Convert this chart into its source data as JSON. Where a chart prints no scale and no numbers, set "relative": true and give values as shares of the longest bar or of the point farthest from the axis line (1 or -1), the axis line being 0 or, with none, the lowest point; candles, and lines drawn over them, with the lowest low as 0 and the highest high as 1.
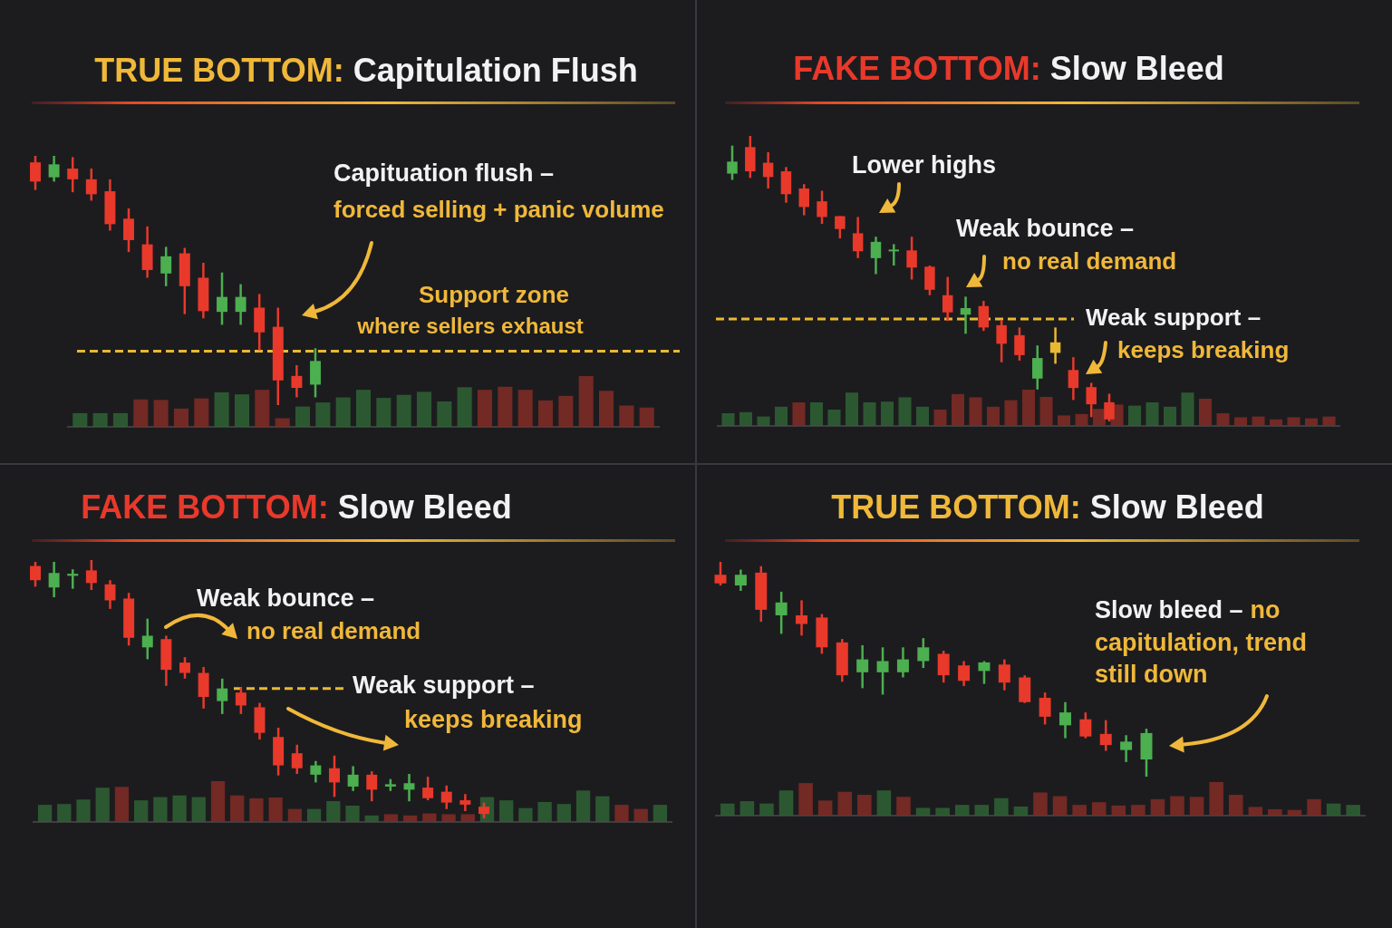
{
  "chart_data": [
    {
      "type": "candlestick",
      "title": "TRUE BOTTOM: Capitulation Flush",
      "relative": true,
      "categories": [
        null,
        null,
        null,
        null,
        null,
        null,
        null,
        null,
        null,
        null,
        null,
        null,
        null,
        null,
        null,
        null
      ],
      "ohlc": [
        [
          0.974,
          1.0,
          0.863,
          0.897
        ],
        [
          0.914,
          1.0,
          0.897,
          0.966
        ],
        [
          0.949,
          0.995,
          0.854,
          0.906
        ],
        [
          0.906,
          0.949,
          0.82,
          0.846
        ],
        [
          0.858,
          0.906,
          0.7,
          0.726
        ],
        [
          0.748,
          0.789,
          0.614,
          0.662
        ],
        [
          0.645,
          0.717,
          0.511,
          0.542
        ],
        [
          0.528,
          0.635,
          0.477,
          0.597
        ],
        [
          0.609,
          0.631,
          0.365,
          0.477
        ],
        [
          0.511,
          0.571,
          0.348,
          0.377
        ],
        [
          0.374,
          0.532,
          0.322,
          0.434
        ],
        [
          0.374,
          0.485,
          0.322,
          0.434
        ],
        [
          0.391,
          0.446,
          0.22,
          0.292
        ],
        [
          0.314,
          0.391,
          0.0,
          0.099
        ],
        [
          0.117,
          0.16,
          0.031,
          0.069
        ],
        [
          0.082,
          0.228,
          0.031,
          0.177
        ]
      ],
      "colors": [
        "#e8392b",
        "#4caf50",
        "#e8392b",
        "#e8392b",
        "#e8392b",
        "#e8392b",
        "#e8392b",
        "#4caf50",
        "#e8392b",
        "#e8392b",
        "#4caf50",
        "#4caf50",
        "#e8392b",
        "#e8392b",
        "#e8392b",
        "#4caf50"
      ],
      "ref_lines": [
        {
          "axis": "y",
          "value": 0.216,
          "color": "#e8b931",
          "line_style": "dashed"
        }
      ],
      "annotations": [
        "Capituation flush –",
        "forced selling + panic volume",
        "Support zone",
        "where sellers exhaust"
      ]
    },
    {
      "type": "bar",
      "relative": true,
      "categories": [
        null,
        null,
        null,
        null,
        null,
        null,
        null,
        null,
        null,
        null,
        null,
        null,
        null,
        null,
        null,
        null,
        null,
        null,
        null,
        null,
        null,
        null,
        null,
        null,
        null,
        null,
        null,
        null,
        null
      ],
      "values": [
        0.27,
        0.27,
        0.27,
        0.54,
        0.53,
        0.36,
        0.56,
        0.68,
        0.64,
        0.73,
        0.17,
        0.4,
        0.48,
        0.58,
        0.73,
        0.57,
        0.63,
        0.69,
        0.5,
        0.78,
        0.73,
        0.79,
        0.73,
        0.52,
        0.61,
        1,
        0.71,
        0.42,
        0.38
      ],
      "colors": [
        "#2f5f33",
        "#2f5f33",
        "#2f5f33",
        "#7d2b25",
        "#7d2b25",
        "#7d2b25",
        "#7d2b25",
        "#2f5f33",
        "#2f5f33",
        "#7d2b25",
        "#7d2b25",
        "#2f5f33",
        "#2f5f33",
        "#2f5f33",
        "#2f5f33",
        "#2f5f33",
        "#2f5f33",
        "#2f5f33",
        "#2f5f33",
        "#2f5f33",
        "#7d2b25",
        "#7d2b25",
        "#7d2b25",
        "#7d2b25",
        "#7d2b25",
        "#7d2b25",
        "#7d2b25",
        "#7d2b25",
        "#7d2b25"
      ]
    },
    {
      "type": "candlestick",
      "title": "FAKE BOTTOM: Slow Bleed",
      "relative": true,
      "categories": [
        null,
        null,
        null,
        null,
        null,
        null,
        null,
        null,
        null,
        null,
        null,
        null,
        null,
        null,
        null,
        null,
        null,
        null,
        null,
        null,
        null,
        null
      ],
      "ohlc": [
        [
          0.868,
          0.966,
          0.846,
          0.91
        ],
        [
          0.961,
          1.0,
          0.853,
          0.876
        ],
        [
          0.906,
          0.943,
          0.816,
          0.856
        ],
        [
          0.876,
          0.891,
          0.766,
          0.796
        ],
        [
          0.816,
          0.831,
          0.722,
          0.751
        ],
        [
          0.771,
          0.808,
          0.692,
          0.716
        ],
        [
          0.719,
          0.719,
          0.641,
          0.674
        ],
        [
          0.659,
          0.716,
          0.572,
          0.596
        ],
        [
          0.572,
          0.647,
          0.516,
          0.629
        ],
        [
          0.596,
          0.621,
          0.546,
          0.602
        ],
        [
          0.599,
          0.647,
          0.497,
          0.539
        ],
        [
          0.542,
          0.546,
          0.442,
          0.461
        ],
        [
          0.442,
          0.506,
          0.352,
          0.382
        ],
        [
          0.374,
          0.437,
          0.307,
          0.397
        ],
        [
          0.404,
          0.422,
          0.317,
          0.329
        ],
        [
          0.337,
          0.356,
          0.207,
          0.272
        ],
        [
          0.302,
          0.329,
          0.213,
          0.232
        ],
        [
          0.15,
          0.266,
          0.112,
          0.222
        ],
        [
          0.24,
          0.329,
          0.202,
          0.277
        ],
        [
          0.18,
          0.225,
          0.075,
          0.117
        ],
        [
          0.12,
          0.135,
          0.015,
          0.06
        ],
        [
          0.067,
          0.097,
          0.0,
          0.007
        ]
      ],
      "colors": [
        "#4caf50",
        "#e8392b",
        "#e8392b",
        "#e8392b",
        "#e8392b",
        "#e8392b",
        "#e8392b",
        "#e8392b",
        "#4caf50",
        "#4caf50",
        "#e8392b",
        "#e8392b",
        "#e8392b",
        "#4caf50",
        "#e8392b",
        "#e8392b",
        "#e8392b",
        "#4caf50",
        "#e8b931",
        "#e8392b",
        "#e8392b",
        "#e8392b"
      ],
      "ref_lines": [
        {
          "axis": "y",
          "value": 0.359,
          "color": "#e8b931",
          "line_style": "dashed"
        }
      ],
      "annotations": [
        "Lower highs",
        "Weak bounce –",
        "no real demand",
        "Weak support –",
        "keeps breaking"
      ]
    },
    {
      "type": "bar",
      "relative": true,
      "categories": [
        null,
        null,
        null,
        null,
        null,
        null,
        null,
        null,
        null,
        null,
        null,
        null,
        null,
        null,
        null,
        null,
        null,
        null,
        null,
        null,
        null,
        null,
        null,
        null,
        null,
        null,
        null,
        null,
        null,
        null,
        null,
        null,
        null,
        null,
        null
      ],
      "values": [
        0.35,
        0.38,
        0.26,
        0.53,
        0.65,
        0.65,
        0.45,
        0.92,
        0.65,
        0.67,
        0.79,
        0.53,
        0.45,
        0.88,
        0.79,
        0.53,
        0.71,
        1,
        0.8,
        0.29,
        0.33,
        0.47,
        0.59,
        0.56,
        0.65,
        0.53,
        0.92,
        0.75,
        0.35,
        0.24,
        0.26,
        0.18,
        0.24,
        0.21,
        0.26
      ],
      "colors": [
        "#2f5f33",
        "#2f5f33",
        "#2f5f33",
        "#2f5f33",
        "#7d2b25",
        "#2f5f33",
        "#2f5f33",
        "#2f5f33",
        "#2f5f33",
        "#2f5f33",
        "#2f5f33",
        "#2f5f33",
        "#7d2b25",
        "#7d2b25",
        "#7d2b25",
        "#7d2b25",
        "#7d2b25",
        "#7d2b25",
        "#7d2b25",
        "#7d2b25",
        "#7d2b25",
        "#7d2b25",
        "#7d2b25",
        "#2f5f33",
        "#2f5f33",
        "#2f5f33",
        "#2f5f33",
        "#7d2b25",
        "#7d2b25",
        "#7d2b25",
        "#7d2b25",
        "#7d2b25",
        "#7d2b25",
        "#7d2b25",
        "#7d2b25"
      ]
    },
    {
      "type": "candlestick",
      "title": "FAKE BOTTOM: Slow Bleed",
      "relative": true,
      "categories": [
        null,
        null,
        null,
        null,
        null,
        null,
        null,
        null,
        null,
        null,
        null,
        null,
        null,
        null,
        null,
        null,
        null,
        null,
        null,
        null,
        null,
        null,
        null,
        null,
        null
      ],
      "ohlc": [
        [
          0.977,
          0.993,
          0.897,
          0.922
        ],
        [
          0.894,
          0.993,
          0.856,
          0.95
        ],
        [
          0.939,
          0.964,
          0.889,
          0.947
        ],
        [
          0.96,
          1.0,
          0.884,
          0.911
        ],
        [
          0.906,
          0.922,
          0.811,
          0.844
        ],
        [
          0.851,
          0.873,
          0.669,
          0.699
        ],
        [
          0.662,
          0.773,
          0.616,
          0.707
        ],
        [
          0.694,
          0.707,
          0.513,
          0.575
        ],
        [
          0.603,
          0.624,
          0.541,
          0.563
        ],
        [
          0.563,
          0.586,
          0.425,
          0.47
        ],
        [
          0.454,
          0.541,
          0.404,
          0.503
        ],
        [
          0.487,
          0.508,
          0.404,
          0.437
        ],
        [
          0.43,
          0.447,
          0.305,
          0.331
        ],
        [
          0.315,
          0.351,
          0.166,
          0.205
        ],
        [
          0.252,
          0.285,
          0.172,
          0.194
        ],
        [
          0.169,
          0.222,
          0.139,
          0.205
        ],
        [
          0.194,
          0.243,
          0.083,
          0.139
        ],
        [
          0.123,
          0.202,
          0.106,
          0.169
        ],
        [
          0.169,
          0.182,
          0.066,
          0.111
        ],
        [
          0.123,
          0.152,
          0.106,
          0.132
        ],
        [
          0.111,
          0.172,
          0.066,
          0.136
        ],
        [
          0.119,
          0.161,
          0.07,
          0.078
        ],
        [
          0.103,
          0.127,
          0.036,
          0.061
        ],
        [
          0.07,
          0.094,
          0.028,
          0.053
        ],
        [
          0.045,
          0.061,
          0.0,
          0.017
        ]
      ],
      "colors": [
        "#e8392b",
        "#4caf50",
        "#4caf50",
        "#e8392b",
        "#e8392b",
        "#e8392b",
        "#4caf50",
        "#e8392b",
        "#e8392b",
        "#e8392b",
        "#4caf50",
        "#e8392b",
        "#e8392b",
        "#e8392b",
        "#e8392b",
        "#4caf50",
        "#e8392b",
        "#4caf50",
        "#e8392b",
        "#4caf50",
        "#4caf50",
        "#e8392b",
        "#e8392b",
        "#e8392b",
        "#e8392b"
      ],
      "ref_lines": [
        {
          "axis": "y",
          "value": 0.503,
          "color": "#e8b931",
          "line_style": "dashed"
        }
      ],
      "annotations": [
        "Weak bounce –",
        "no real demand",
        "Weak support –",
        "keeps breaking"
      ]
    },
    {
      "type": "bar",
      "relative": true,
      "categories": [
        null,
        null,
        null,
        null,
        null,
        null,
        null,
        null,
        null,
        null,
        null,
        null,
        null,
        null,
        null,
        null,
        null,
        null,
        null,
        null,
        null,
        null,
        null,
        null,
        null,
        null,
        null,
        null,
        null,
        null,
        null,
        null,
        null
      ],
      "values": [
        0.42,
        0.44,
        0.55,
        0.84,
        0.86,
        0.53,
        0.61,
        0.65,
        0.61,
        1,
        0.65,
        0.58,
        0.6,
        0.32,
        0.32,
        0.51,
        0.4,
        0.16,
        0.19,
        0.16,
        0.21,
        0.19,
        0.19,
        0.61,
        0.53,
        0.34,
        0.49,
        0.44,
        0.77,
        0.63,
        0.42,
        0.32,
        0.42
      ],
      "colors": [
        "#2f5f33",
        "#2f5f33",
        "#2f5f33",
        "#2f5f33",
        "#7d2b25",
        "#2f5f33",
        "#2f5f33",
        "#2f5f33",
        "#2f5f33",
        "#7d2b25",
        "#7d2b25",
        "#7d2b25",
        "#7d2b25",
        "#7d2b25",
        "#2f5f33",
        "#2f5f33",
        "#2f5f33",
        "#2f5f33",
        "#7d2b25",
        "#7d2b25",
        "#7d2b25",
        "#7d2b25",
        "#7d2b25",
        "#2f5f33",
        "#2f5f33",
        "#2f5f33",
        "#2f5f33",
        "#2f5f33",
        "#2f5f33",
        "#2f5f33",
        "#7d2b25",
        "#7d2b25",
        "#2f5f33"
      ]
    },
    {
      "type": "candlestick",
      "title": "TRUE BOTTOM: Slow Bleed",
      "relative": true,
      "categories": [
        null,
        null,
        null,
        null,
        null,
        null,
        null,
        null,
        null,
        null,
        null,
        null,
        null,
        null,
        null,
        null,
        null,
        null,
        null,
        null,
        null,
        null
      ],
      "ohlc": [
        [
          0.94,
          1.0,
          0.89,
          0.9
        ],
        [
          0.89,
          0.964,
          0.865,
          0.94
        ],
        [
          0.95,
          0.98,
          0.721,
          0.777
        ],
        [
          0.751,
          0.861,
          0.665,
          0.811
        ],
        [
          0.751,
          0.821,
          0.657,
          0.711
        ],
        [
          0.741,
          0.757,
          0.572,
          0.602
        ],
        [
          0.625,
          0.641,
          0.442,
          0.472
        ],
        [
          0.486,
          0.612,
          0.412,
          0.546
        ],
        [
          0.486,
          0.602,
          0.382,
          0.538
        ],
        [
          0.486,
          0.602,
          0.462,
          0.546
        ],
        [
          0.538,
          0.645,
          0.506,
          0.602
        ],
        [
          0.572,
          0.586,
          0.438,
          0.472
        ],
        [
          0.518,
          0.538,
          0.422,
          0.446
        ],
        [
          0.492,
          0.538,
          0.432,
          0.532
        ],
        [
          0.522,
          0.546,
          0.402,
          0.438
        ],
        [
          0.462,
          0.472,
          0.343,
          0.347
        ],
        [
          0.367,
          0.392,
          0.243,
          0.279
        ],
        [
          0.239,
          0.347,
          0.179,
          0.299
        ],
        [
          0.267,
          0.299,
          0.179,
          0.187
        ],
        [
          0.199,
          0.263,
          0.12,
          0.147
        ],
        [
          0.124,
          0.193,
          0.068,
          0.163
        ],
        [
          0.08,
          0.223,
          0.0,
          0.203
        ]
      ],
      "colors": [
        "#e8392b",
        "#4caf50",
        "#e8392b",
        "#4caf50",
        "#e8392b",
        "#e8392b",
        "#e8392b",
        "#4caf50",
        "#4caf50",
        "#4caf50",
        "#4caf50",
        "#e8392b",
        "#e8392b",
        "#4caf50",
        "#e8392b",
        "#e8392b",
        "#e8392b",
        "#4caf50",
        "#e8392b",
        "#e8392b",
        "#4caf50",
        "#4caf50"
      ],
      "annotations": [
        "Slow bleed –",
        "no",
        "capitulation, trend",
        "still down"
      ]
    },
    {
      "type": "bar",
      "relative": true,
      "categories": [
        null,
        null,
        null,
        null,
        null,
        null,
        null,
        null,
        null,
        null,
        null,
        null,
        null,
        null,
        null,
        null,
        null,
        null,
        null,
        null,
        null,
        null,
        null,
        null,
        null,
        null,
        null,
        null,
        null,
        null,
        null,
        null,
        null
      ],
      "values": [
        0.36,
        0.43,
        0.36,
        0.75,
        0.97,
        0.45,
        0.71,
        0.62,
        0.75,
        0.56,
        0.23,
        0.23,
        0.32,
        0.32,
        0.52,
        0.27,
        0.69,
        0.58,
        0.32,
        0.4,
        0.3,
        0.32,
        0.49,
        0.58,
        0.56,
        1,
        0.62,
        0.26,
        0.19,
        0.17,
        0.49,
        0.36,
        0.32
      ],
      "colors": [
        "#2f5f33",
        "#2f5f33",
        "#2f5f33",
        "#2f5f33",
        "#7d2b25",
        "#7d2b25",
        "#7d2b25",
        "#7d2b25",
        "#2f5f33",
        "#7d2b25",
        "#2f5f33",
        "#2f5f33",
        "#2f5f33",
        "#2f5f33",
        "#2f5f33",
        "#2f5f33",
        "#7d2b25",
        "#7d2b25",
        "#7d2b25",
        "#7d2b25",
        "#7d2b25",
        "#7d2b25",
        "#7d2b25",
        "#7d2b25",
        "#7d2b25",
        "#7d2b25",
        "#7d2b25",
        "#7d2b25",
        "#7d2b25",
        "#7d2b25",
        "#7d2b25",
        "#2f5f33",
        "#2f5f33"
      ]
    }
  ]
}
